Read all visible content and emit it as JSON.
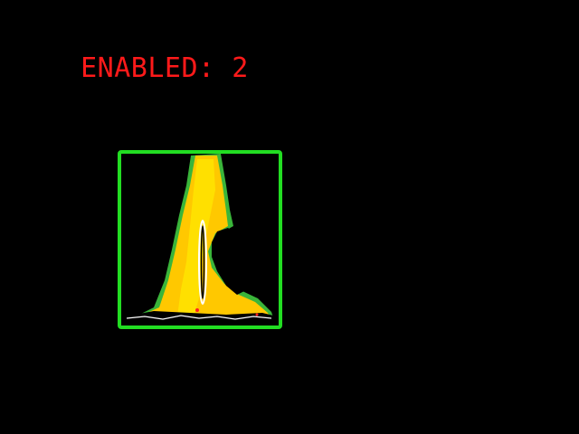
{
  "status": {
    "label": "ENABLED:",
    "count": "2",
    "color": "#ff1a1a"
  },
  "detection": {
    "box_color": "#22dd22",
    "object_colors": {
      "core": "#ffc800",
      "highlight": "#ffe400",
      "edge": "#3ab53a"
    }
  }
}
